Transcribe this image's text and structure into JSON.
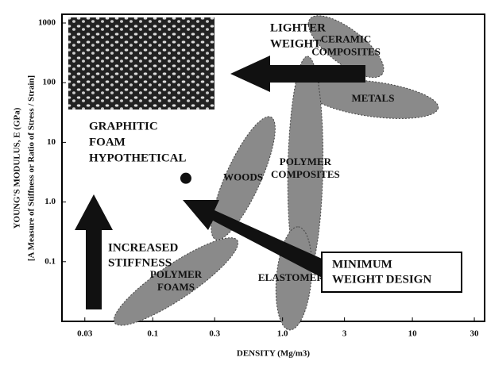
{
  "chart_data": {
    "type": "region",
    "x_label": "DENSITY (Mg/m3)",
    "y_label": "YOUNG'S MODULUS, E (GPa)",
    "y_label_2": "[A Measure of Stiffness or Ratio of Stress / Strain]",
    "log_x": true,
    "log_y": true,
    "xlim": [
      0.02,
      36
    ],
    "ylim": [
      0.01,
      1400
    ],
    "xticks": [
      0.03,
      0.1,
      0.3,
      {
        "value": 1,
        "label": "1.0"
      },
      3,
      10,
      30
    ],
    "yticks": [
      1000,
      100,
      10,
      {
        "value": 1,
        "label": "1.0"
      },
      0.1
    ],
    "color": "#8a8a8a",
    "regions": [
      {
        "label_lines": [
          "CERAMIC",
          "COMPOSITES"
        ],
        "from": [
          1.9,
          900
        ],
        "to": [
          5,
          180
        ]
      },
      {
        "label_lines": [
          "METALS"
        ],
        "from": [
          1.9,
          70
        ],
        "to": [
          13,
          40
        ]
      },
      {
        "label_lines": [
          "POLYMER",
          "COMPOSITES"
        ],
        "from": [
          1.45,
          0.07
        ],
        "to": [
          1.55,
          180
        ]
      },
      {
        "label_lines": [
          "WOODS"
        ],
        "from": [
          0.33,
          0.35
        ],
        "to": [
          0.75,
          18
        ]
      },
      {
        "label_lines": [
          "POLYMER",
          "FOAMS"
        ],
        "from": [
          0.06,
          0.012
        ],
        "to": [
          0.38,
          0.18
        ]
      },
      {
        "label_lines": [
          "ELASTOMERS"
        ],
        "from": [
          1.15,
          0.011
        ],
        "to": [
          1.3,
          0.25
        ]
      }
    ],
    "point": {
      "x": 0.18,
      "y": 2.5
    },
    "point_label_lines": [
      "GRAPHITIC",
      "FOAM",
      "HYPOTHETICAL"
    ],
    "lighter_lines": [
      "LIGHTER",
      "WEIGHT"
    ],
    "stiffness_lines": [
      "INCREASED",
      "STIFFNESS"
    ],
    "min_weight_lines": [
      "MINIMUM",
      "WEIGHT DESIGN"
    ]
  }
}
